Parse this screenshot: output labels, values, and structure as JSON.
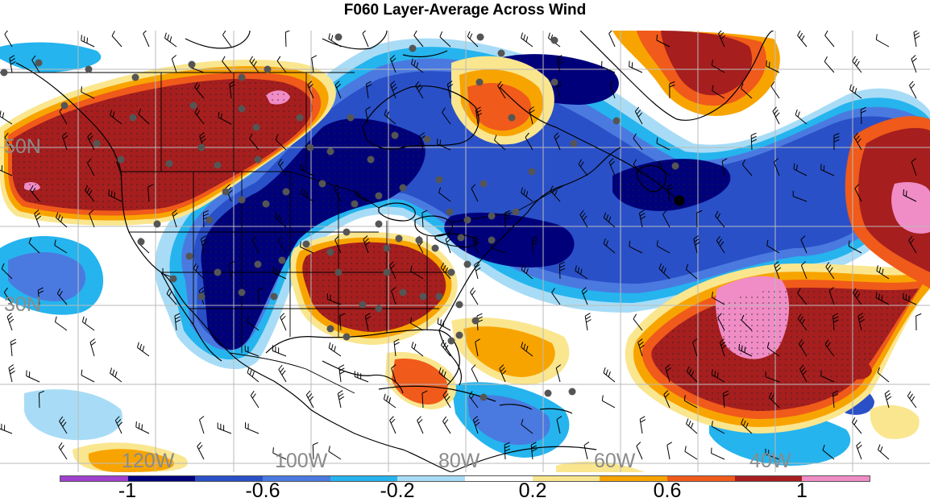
{
  "title": "F060 Layer-Average Across Wind",
  "map": {
    "lon_labels": [
      "120W",
      "100W",
      "80W",
      "60W",
      "40W"
    ],
    "lat_labels": [
      "50N",
      "30N"
    ],
    "colors": {
      "c_m12": "#a040d0",
      "c_m10": "#00007a",
      "c_m08": "#2a50c8",
      "c_m06": "#4a7ae0",
      "c_m04": "#25b4ee",
      "c_m02": "#a8dcf6",
      "c_p02": "#fae68e",
      "c_p04": "#f8a400",
      "c_p06": "#f05a1a",
      "c_p08": "#a61e1e",
      "c_p10": "#f08cc6"
    }
  },
  "colorbar": {
    "colors": [
      "#a040d0",
      "#00007a",
      "#2a50c8",
      "#4a7ae0",
      "#25b4ee",
      "#a8dcf6",
      "#ffffff",
      "#fae68e",
      "#f8a400",
      "#f05a1a",
      "#a61e1e",
      "#f08cc6"
    ],
    "labels": [
      "-1",
      "-0.6",
      "-0.2",
      "0.2",
      "0.6",
      "1"
    ]
  }
}
